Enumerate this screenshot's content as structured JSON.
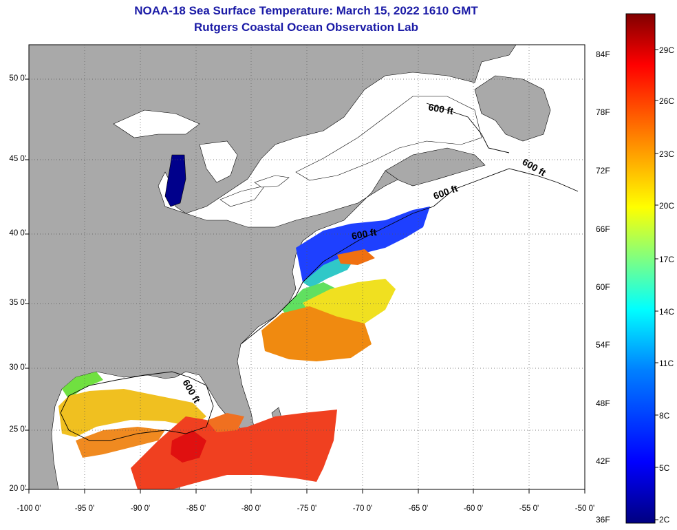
{
  "header": {
    "title": "NOAA-18 Sea Surface Temperature:  March 15, 2022 1610 GMT",
    "subtitle": "Rutgers Coastal Ocean Observation Lab"
  },
  "map": {
    "lon_range": [
      -100,
      -50
    ],
    "lat_range": [
      20,
      52.5
    ],
    "lat_ticks": [
      "50 0'",
      "45 0'",
      "40 0'",
      "35 0'",
      "30 0'",
      "25 0'",
      "20 0'"
    ],
    "lon_ticks": [
      "-100 0'",
      "-95 0'",
      "-90 0'",
      "-85 0'",
      "-80 0'",
      "-75 0'",
      "-70 0'",
      "-65 0'",
      "-60 0'",
      "-55 0'",
      "-50 0'"
    ],
    "grid": true,
    "land_color": "#a9a9a9",
    "no_data_color": "#ffffff",
    "contour_labels": [
      "600 ft",
      "600 ft",
      "600 ft",
      "600 ft",
      "600 ft"
    ]
  },
  "colorbar": {
    "fahrenheit_labels": [
      "84F",
      "78F",
      "72F",
      "66F",
      "60F",
      "54F",
      "48F",
      "42F",
      "36F"
    ],
    "celsius_labels": [
      "29C",
      "26C",
      "23C",
      "20C",
      "17C",
      "14C",
      "11C",
      "8C",
      "5C",
      "2C"
    ],
    "colors": [
      "#800000",
      "#ff0000",
      "#ff8000",
      "#ffff00",
      "#80ff80",
      "#00ffff",
      "#0080ff",
      "#0000ff",
      "#000080"
    ]
  }
}
